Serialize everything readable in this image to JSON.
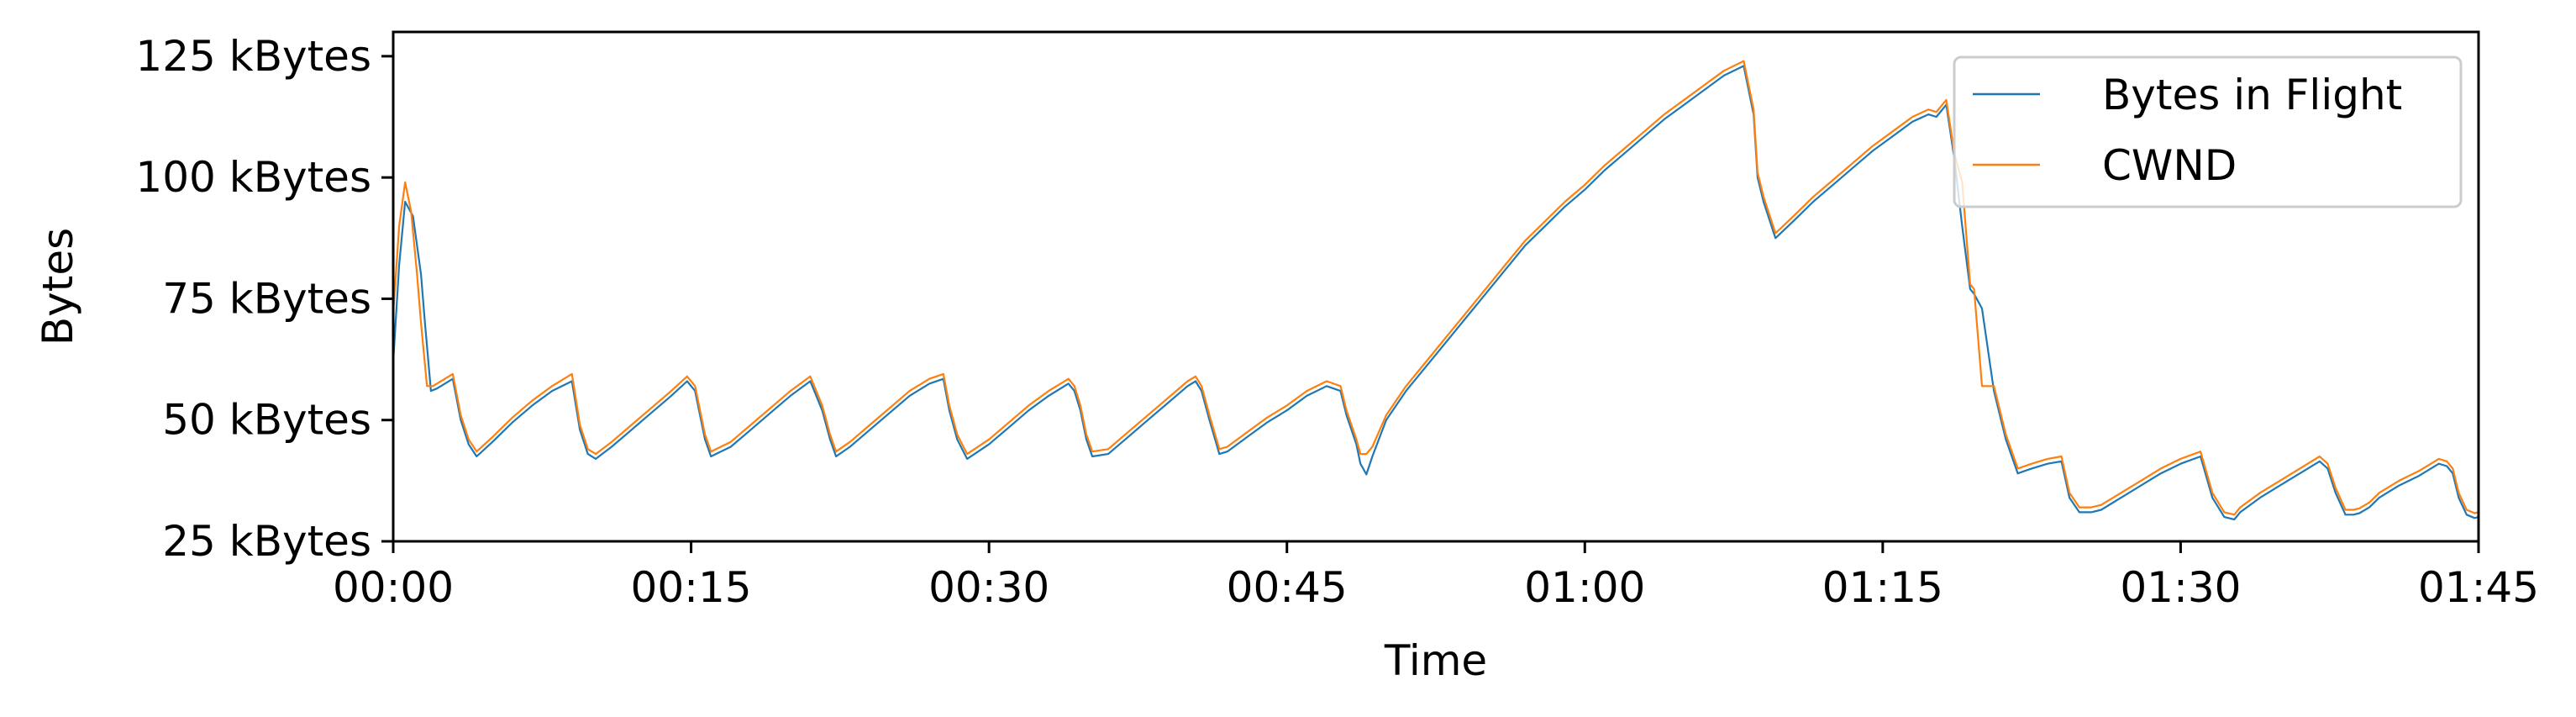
{
  "chart_data": {
    "type": "line",
    "title": "",
    "xlabel": "Time",
    "ylabel": "Bytes",
    "xlim": [
      0,
      105
    ],
    "ylim": [
      25,
      130
    ],
    "x_unit": "seconds",
    "x_ticks": [
      {
        "value": 0,
        "label": "00:00"
      },
      {
        "value": 15,
        "label": "00:15"
      },
      {
        "value": 30,
        "label": "00:30"
      },
      {
        "value": 45,
        "label": "00:45"
      },
      {
        "value": 60,
        "label": "01:00"
      },
      {
        "value": 75,
        "label": "01:15"
      },
      {
        "value": 90,
        "label": "01:30"
      },
      {
        "value": 105,
        "label": "01:45"
      }
    ],
    "y_ticks": [
      {
        "value": 25,
        "label": "25 kBytes"
      },
      {
        "value": 50,
        "label": "50 kBytes"
      },
      {
        "value": 75,
        "label": "75 kBytes"
      },
      {
        "value": 100,
        "label": "100 kBytes"
      },
      {
        "value": 125,
        "label": "125 kBytes"
      }
    ],
    "grid": false,
    "legend_position": "top-right",
    "series": [
      {
        "name": "Bytes in Flight",
        "color": "#1f77b4",
        "points": [
          [
            0,
            62
          ],
          [
            0.3,
            82
          ],
          [
            0.6,
            95
          ],
          [
            1.0,
            92
          ],
          [
            1.4,
            80
          ],
          [
            1.6,
            70
          ],
          [
            1.9,
            56
          ],
          [
            2.2,
            56.5
          ],
          [
            2.6,
            57.5
          ],
          [
            3.0,
            58.5
          ],
          [
            3.4,
            50
          ],
          [
            3.8,
            45
          ],
          [
            4.2,
            42.5
          ],
          [
            5.0,
            45.5
          ],
          [
            6.0,
            49.5
          ],
          [
            7.0,
            53
          ],
          [
            8.0,
            56
          ],
          [
            9.0,
            58
          ],
          [
            9.4,
            48
          ],
          [
            9.8,
            43
          ],
          [
            10.2,
            42
          ],
          [
            11.0,
            44.5
          ],
          [
            12.0,
            48
          ],
          [
            13.0,
            51.5
          ],
          [
            14.0,
            55
          ],
          [
            14.8,
            58
          ],
          [
            15.2,
            56
          ],
          [
            15.4,
            52
          ],
          [
            15.7,
            46
          ],
          [
            16.0,
            42.5
          ],
          [
            17.0,
            44.5
          ],
          [
            18.0,
            48
          ],
          [
            19.0,
            51.5
          ],
          [
            20.0,
            55
          ],
          [
            21.0,
            58
          ],
          [
            21.6,
            52
          ],
          [
            22.0,
            46
          ],
          [
            22.3,
            42.5
          ],
          [
            23.0,
            44.5
          ],
          [
            24.0,
            48
          ],
          [
            25.0,
            51.5
          ],
          [
            26.0,
            55
          ],
          [
            27.0,
            57.5
          ],
          [
            27.7,
            58.5
          ],
          [
            28.0,
            52
          ],
          [
            28.4,
            46
          ],
          [
            28.9,
            42
          ],
          [
            30.0,
            45
          ],
          [
            31.0,
            48.5
          ],
          [
            32.0,
            52
          ],
          [
            33.0,
            55
          ],
          [
            34.0,
            57.5
          ],
          [
            34.3,
            56
          ],
          [
            34.6,
            52
          ],
          [
            34.9,
            46
          ],
          [
            35.2,
            42.5
          ],
          [
            36.0,
            43
          ],
          [
            37.0,
            46.5
          ],
          [
            38.0,
            50
          ],
          [
            39.0,
            53.5
          ],
          [
            40.0,
            57
          ],
          [
            40.4,
            58
          ],
          [
            40.7,
            56
          ],
          [
            41.1,
            50
          ],
          [
            41.6,
            43
          ],
          [
            42.0,
            43.5
          ],
          [
            43.0,
            46.5
          ],
          [
            44.0,
            49.5
          ],
          [
            45.0,
            52
          ],
          [
            46.0,
            55
          ],
          [
            47.0,
            57
          ],
          [
            47.7,
            56
          ],
          [
            48.0,
            51
          ],
          [
            48.5,
            45
          ],
          [
            48.7,
            41
          ],
          [
            49.0,
            38.8
          ],
          [
            49.3,
            42.5
          ],
          [
            50.0,
            50
          ],
          [
            51.0,
            56
          ],
          [
            52.0,
            61
          ],
          [
            53.0,
            66
          ],
          [
            54.0,
            71
          ],
          [
            55.0,
            76
          ],
          [
            56.0,
            81
          ],
          [
            57.0,
            86
          ],
          [
            58.0,
            90
          ],
          [
            59.0,
            94
          ],
          [
            60.0,
            97.5
          ],
          [
            61.0,
            101.5
          ],
          [
            62.0,
            105
          ],
          [
            63.0,
            108.5
          ],
          [
            64.0,
            112
          ],
          [
            65.0,
            115
          ],
          [
            66.0,
            118
          ],
          [
            67.0,
            121
          ],
          [
            68.0,
            123
          ],
          [
            68.5,
            113
          ],
          [
            68.7,
            100
          ],
          [
            69.0,
            95
          ],
          [
            69.6,
            87.5
          ],
          [
            70.5,
            91
          ],
          [
            71.5,
            95
          ],
          [
            72.5,
            98.5
          ],
          [
            73.5,
            102
          ],
          [
            74.5,
            105.5
          ],
          [
            75.5,
            108.5
          ],
          [
            76.5,
            111.5
          ],
          [
            77.3,
            113
          ],
          [
            77.7,
            112.5
          ],
          [
            78.2,
            115
          ],
          [
            78.6,
            104
          ],
          [
            79.0,
            90
          ],
          [
            79.4,
            77
          ],
          [
            79.6,
            76
          ],
          [
            80.0,
            73
          ],
          [
            80.6,
            56
          ],
          [
            81.2,
            46
          ],
          [
            81.8,
            39
          ],
          [
            82.5,
            40
          ],
          [
            83.3,
            41
          ],
          [
            84.0,
            41.5
          ],
          [
            84.4,
            34
          ],
          [
            84.9,
            31
          ],
          [
            85.5,
            31
          ],
          [
            86.0,
            31.5
          ],
          [
            87.0,
            34
          ],
          [
            88.0,
            36.5
          ],
          [
            89.0,
            39
          ],
          [
            90.0,
            41
          ],
          [
            91.0,
            42.5
          ],
          [
            91.6,
            34
          ],
          [
            92.2,
            30
          ],
          [
            92.7,
            29.5
          ],
          [
            93.0,
            31
          ],
          [
            94.0,
            34
          ],
          [
            95.0,
            36.5
          ],
          [
            96.0,
            39
          ],
          [
            97.0,
            41.5
          ],
          [
            97.4,
            40
          ],
          [
            97.8,
            35
          ],
          [
            98.3,
            30.5
          ],
          [
            98.7,
            30.5
          ],
          [
            99.0,
            30.8
          ],
          [
            99.5,
            32
          ],
          [
            100.0,
            34
          ],
          [
            101.0,
            36.5
          ],
          [
            102.0,
            38.5
          ],
          [
            103.0,
            41
          ],
          [
            103.4,
            40.5
          ],
          [
            103.7,
            39
          ],
          [
            104.0,
            34
          ],
          [
            104.4,
            30.5
          ],
          [
            104.8,
            29.8
          ],
          [
            105.0,
            30
          ]
        ]
      },
      {
        "name": "CWND",
        "color": "#ff7f0e",
        "points": [
          [
            0,
            72
          ],
          [
            0.3,
            90
          ],
          [
            0.6,
            99
          ],
          [
            0.9,
            93
          ],
          [
            1.2,
            80
          ],
          [
            1.4,
            70
          ],
          [
            1.7,
            57
          ],
          [
            2.0,
            57
          ],
          [
            2.6,
            58.5
          ],
          [
            3.0,
            59.5
          ],
          [
            3.4,
            51
          ],
          [
            3.8,
            46
          ],
          [
            4.2,
            43.5
          ],
          [
            5.0,
            46.5
          ],
          [
            6.0,
            50.5
          ],
          [
            7.0,
            54
          ],
          [
            8.0,
            57
          ],
          [
            9.0,
            59.5
          ],
          [
            9.4,
            49
          ],
          [
            9.8,
            44
          ],
          [
            10.2,
            43
          ],
          [
            11.0,
            45.5
          ],
          [
            12.0,
            49
          ],
          [
            13.0,
            52.5
          ],
          [
            14.0,
            56
          ],
          [
            14.8,
            59
          ],
          [
            15.2,
            57
          ],
          [
            15.4,
            53
          ],
          [
            15.7,
            47
          ],
          [
            16.0,
            43.5
          ],
          [
            17.0,
            45.5
          ],
          [
            18.0,
            49
          ],
          [
            19.0,
            52.5
          ],
          [
            20.0,
            56
          ],
          [
            21.0,
            59
          ],
          [
            21.6,
            53
          ],
          [
            22.0,
            47
          ],
          [
            22.3,
            43.5
          ],
          [
            23.0,
            45.5
          ],
          [
            24.0,
            49
          ],
          [
            25.0,
            52.5
          ],
          [
            26.0,
            56
          ],
          [
            27.0,
            58.5
          ],
          [
            27.7,
            59.5
          ],
          [
            28.0,
            53
          ],
          [
            28.4,
            47
          ],
          [
            28.9,
            43
          ],
          [
            30.0,
            46
          ],
          [
            31.0,
            49.5
          ],
          [
            32.0,
            53
          ],
          [
            33.0,
            56
          ],
          [
            34.0,
            58.5
          ],
          [
            34.3,
            57
          ],
          [
            34.6,
            53
          ],
          [
            34.9,
            47
          ],
          [
            35.2,
            43.5
          ],
          [
            36.0,
            44
          ],
          [
            37.0,
            47.5
          ],
          [
            38.0,
            51
          ],
          [
            39.0,
            54.5
          ],
          [
            40.0,
            58
          ],
          [
            40.4,
            59
          ],
          [
            40.7,
            57
          ],
          [
            41.1,
            51
          ],
          [
            41.6,
            44
          ],
          [
            42.0,
            44.5
          ],
          [
            43.0,
            47.5
          ],
          [
            44.0,
            50.5
          ],
          [
            45.0,
            53
          ],
          [
            46.0,
            56
          ],
          [
            47.0,
            58
          ],
          [
            47.7,
            57
          ],
          [
            48.0,
            52
          ],
          [
            48.5,
            46
          ],
          [
            48.7,
            43
          ],
          [
            49.0,
            43
          ],
          [
            49.3,
            44.5
          ],
          [
            50.0,
            51
          ],
          [
            51.0,
            57
          ],
          [
            52.0,
            62
          ],
          [
            53.0,
            67
          ],
          [
            54.0,
            72
          ],
          [
            55.0,
            77
          ],
          [
            56.0,
            82
          ],
          [
            57.0,
            87
          ],
          [
            58.0,
            91
          ],
          [
            59.0,
            95
          ],
          [
            60.0,
            98.5
          ],
          [
            61.0,
            102.5
          ],
          [
            62.0,
            106
          ],
          [
            63.0,
            109.5
          ],
          [
            64.0,
            113
          ],
          [
            65.0,
            116
          ],
          [
            66.0,
            119
          ],
          [
            67.0,
            122
          ],
          [
            68.0,
            124
          ],
          [
            68.5,
            114
          ],
          [
            68.7,
            101
          ],
          [
            69.0,
            96
          ],
          [
            69.6,
            88.5
          ],
          [
            70.5,
            92
          ],
          [
            71.5,
            96
          ],
          [
            72.5,
            99.5
          ],
          [
            73.5,
            103
          ],
          [
            74.5,
            106.5
          ],
          [
            75.5,
            109.5
          ],
          [
            76.5,
            112.5
          ],
          [
            77.3,
            114
          ],
          [
            77.7,
            113.5
          ],
          [
            78.2,
            116
          ],
          [
            78.6,
            105
          ],
          [
            79.0,
            99
          ],
          [
            79.4,
            78
          ],
          [
            79.6,
            77
          ],
          [
            80.0,
            57
          ],
          [
            80.6,
            57
          ],
          [
            81.2,
            47
          ],
          [
            81.8,
            40
          ],
          [
            82.5,
            41
          ],
          [
            83.3,
            42
          ],
          [
            84.0,
            42.5
          ],
          [
            84.4,
            35
          ],
          [
            84.9,
            32
          ],
          [
            85.5,
            32
          ],
          [
            86.0,
            32.5
          ],
          [
            87.0,
            35
          ],
          [
            88.0,
            37.5
          ],
          [
            89.0,
            40
          ],
          [
            90.0,
            42
          ],
          [
            91.0,
            43.5
          ],
          [
            91.6,
            35
          ],
          [
            92.2,
            31
          ],
          [
            92.7,
            30.5
          ],
          [
            93.0,
            32
          ],
          [
            94.0,
            35
          ],
          [
            95.0,
            37.5
          ],
          [
            96.0,
            40
          ],
          [
            97.0,
            42.5
          ],
          [
            97.4,
            41
          ],
          [
            97.8,
            36
          ],
          [
            98.3,
            31.5
          ],
          [
            98.7,
            31.5
          ],
          [
            99.0,
            31.8
          ],
          [
            99.5,
            33
          ],
          [
            100.0,
            35
          ],
          [
            101.0,
            37.5
          ],
          [
            102.0,
            39.5
          ],
          [
            103.0,
            42
          ],
          [
            103.4,
            41.5
          ],
          [
            103.7,
            40
          ],
          [
            104.0,
            35
          ],
          [
            104.4,
            31.5
          ],
          [
            104.8,
            30.8
          ],
          [
            105.0,
            31
          ]
        ]
      }
    ]
  }
}
